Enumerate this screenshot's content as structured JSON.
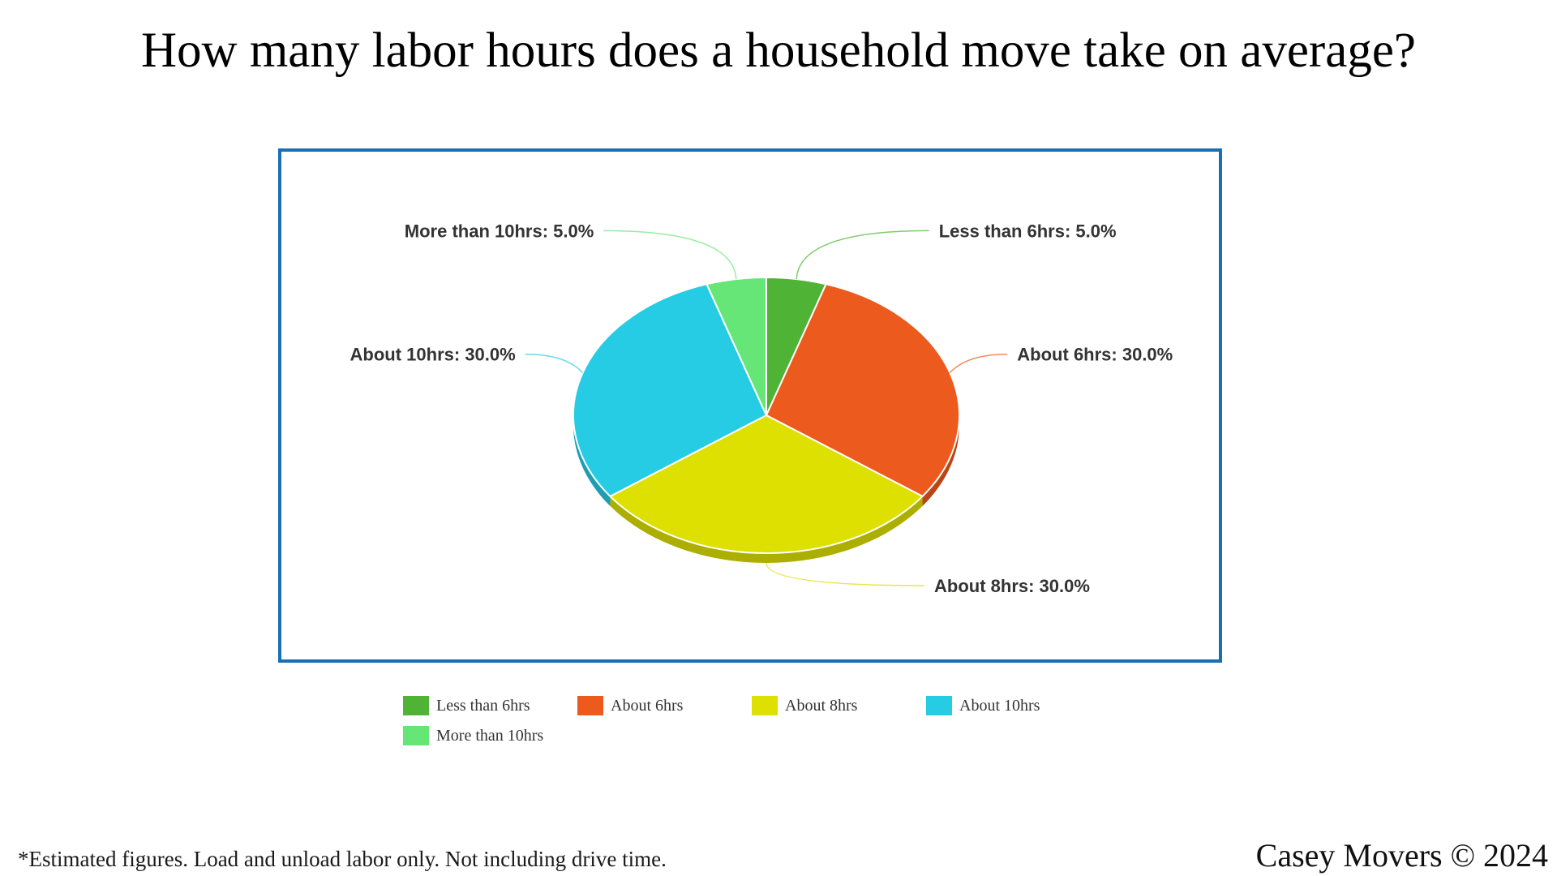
{
  "page": {
    "title": "How many labor hours does a household move take on average?",
    "footnote": "*Estimated figures. Load and unload labor only. Not including drive time.",
    "copyright": "Casey Movers © 2024"
  },
  "colors": {
    "frame_border": "#1a6fb4"
  },
  "chart_data": {
    "type": "pie",
    "style": "3d",
    "title": "",
    "label_format": "{name}: {value}%",
    "legend_position": "bottom",
    "categories": [
      "Less than 6hrs",
      "About 6hrs",
      "About 8hrs",
      "About 10hrs",
      "More than 10hrs"
    ],
    "values": [
      5.0,
      30.0,
      30.0,
      30.0,
      5.0
    ],
    "colors": [
      "#4fb335",
      "#ec5a1e",
      "#dde000",
      "#26cbe4",
      "#66e677"
    ],
    "labels": [
      "Less than 6hrs: 5.0%",
      "About 6hrs: 30.0%",
      "About 8hrs: 30.0%",
      "About 10hrs: 30.0%",
      "More than 10hrs: 5.0%"
    ]
  }
}
